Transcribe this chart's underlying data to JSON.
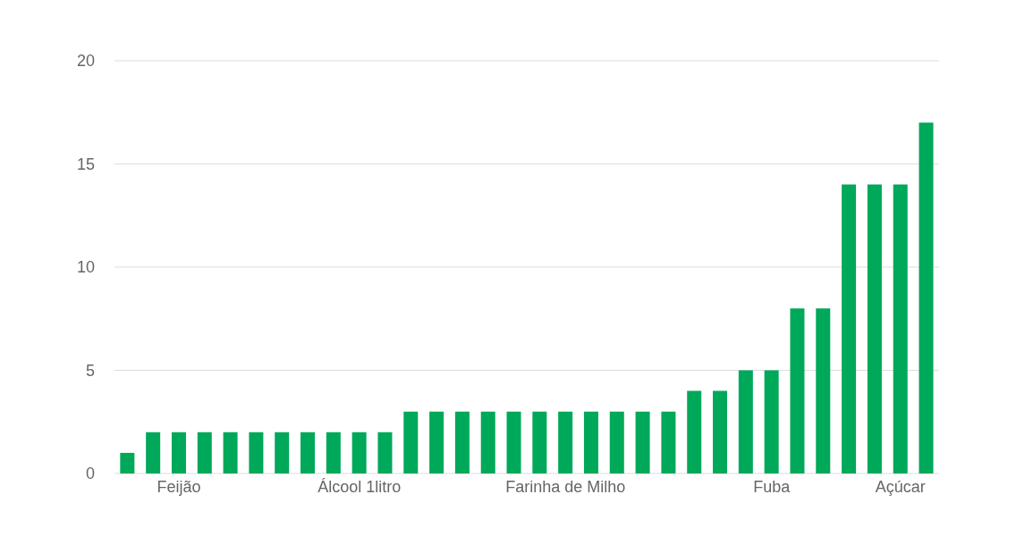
{
  "chart_data": {
    "type": "bar",
    "categories": [
      null,
      null,
      "Feijão",
      null,
      null,
      null,
      null,
      null,
      null,
      "Álcool 1litro",
      null,
      null,
      null,
      null,
      null,
      null,
      null,
      "Farinha de Milho",
      null,
      null,
      null,
      null,
      null,
      null,
      null,
      "Fuba",
      null,
      null,
      null,
      null,
      "Açúcar",
      null
    ],
    "values": [
      1,
      2,
      2,
      2,
      2,
      2,
      2,
      2,
      2,
      2,
      2,
      3,
      3,
      3,
      3,
      3,
      3,
      3,
      3,
      3,
      3,
      3,
      4,
      4,
      5,
      5,
      8,
      8,
      14,
      14,
      14,
      17
    ],
    "color": "#00a85a",
    "ylim": [
      0,
      20
    ],
    "yticks": [
      0,
      5,
      10,
      15,
      20
    ],
    "grid": "y"
  }
}
